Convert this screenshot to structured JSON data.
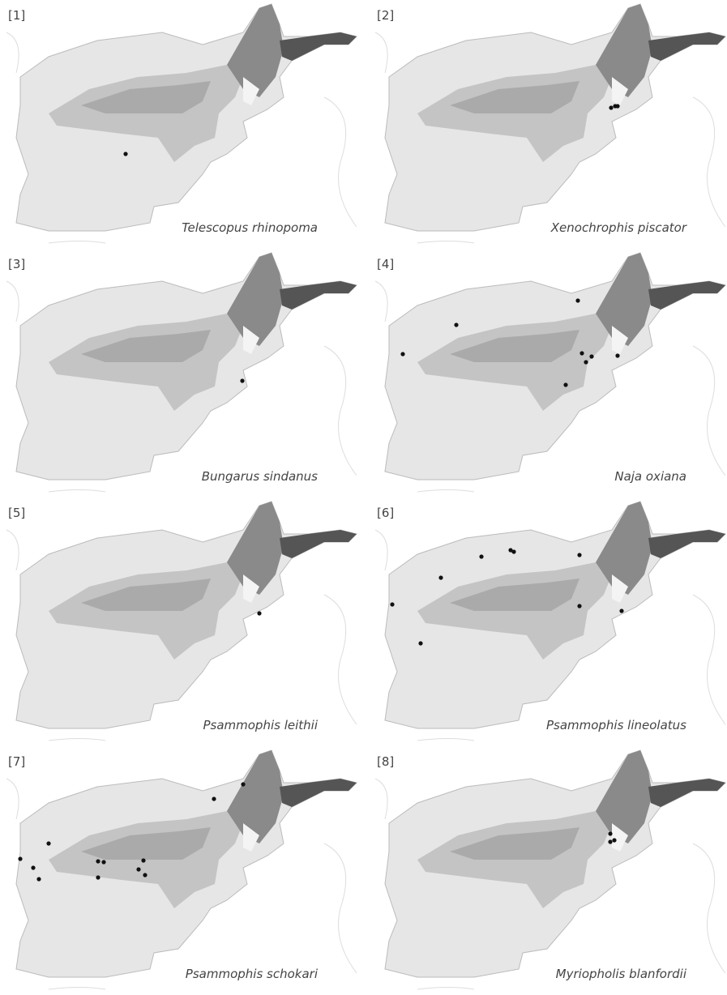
{
  "panels": [
    {
      "label": "[1]",
      "species": "Telescopus rhinopoma"
    },
    {
      "label": "[2]",
      "species": "Xenochrophis piscator"
    },
    {
      "label": "[3]",
      "species": "Bungarus sindanus"
    },
    {
      "label": "[4]",
      "species": "Naja oxiana"
    },
    {
      "label": "[5]",
      "species": "Psammophis leithii"
    },
    {
      "label": "[6]",
      "species": "Psammophis lineolatus"
    },
    {
      "label": "[7]",
      "species": "Psammophis schokari"
    },
    {
      "label": "[8]",
      "species": "Myriopholis blanfordii"
    }
  ]
}
